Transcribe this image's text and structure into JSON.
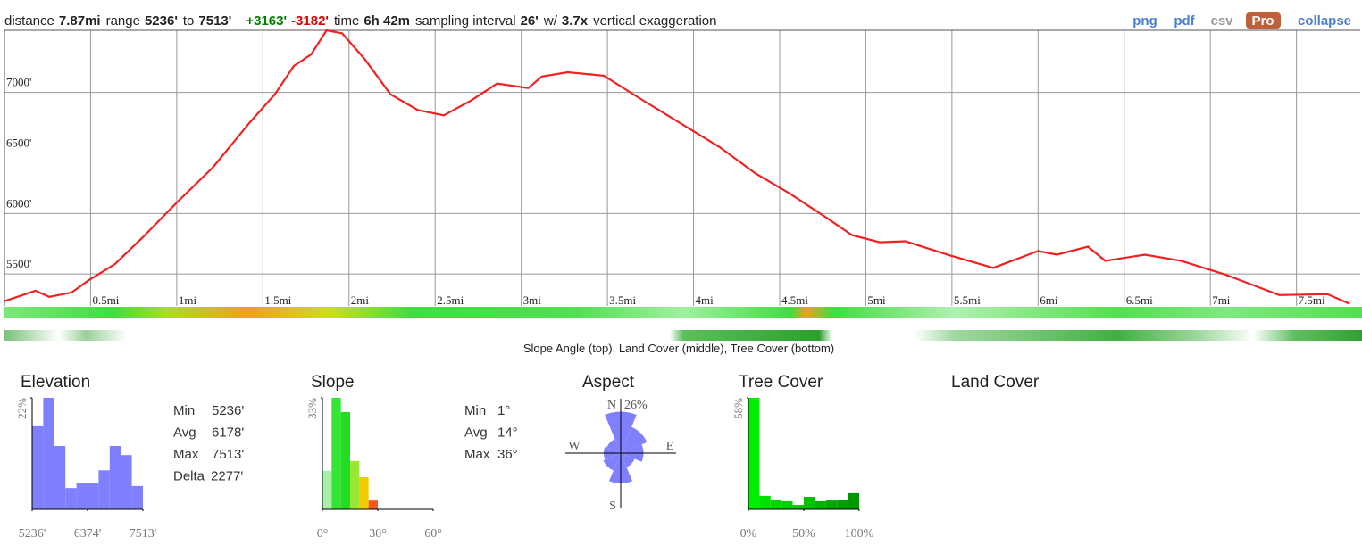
{
  "header": {
    "summary": [
      {
        "label": "distance",
        "value": "7.87mi"
      },
      {
        "label": "range",
        "value": "5236'"
      },
      {
        "label": "to",
        "value": "7513'"
      },
      {
        "value": "+3163'",
        "color": "#008000"
      },
      {
        "value": "-3182'",
        "color": "#e00000"
      },
      {
        "label": "time",
        "value": "6h 42m"
      },
      {
        "label": "sampling interval",
        "value": "26'"
      },
      {
        "label": "w/",
        "value": "3.7x"
      },
      {
        "label": "vertical exaggeration"
      }
    ],
    "links": [
      "png",
      "pdf",
      "csv",
      "Pro",
      "collapse"
    ]
  },
  "chart_data": [
    {
      "type": "line",
      "color": "#ee2222",
      "grid": true,
      "x": [
        0,
        0.18,
        0.26,
        0.39,
        0.49,
        0.64,
        0.8,
        1.0,
        1.21,
        1.42,
        1.57,
        1.68,
        1.78,
        1.87,
        1.96,
        2.09,
        2.24,
        2.4,
        2.55,
        2.71,
        2.86,
        3.04,
        3.12,
        3.27,
        3.48,
        3.69,
        3.94,
        4.15,
        4.36,
        4.56,
        4.77,
        4.92,
        5.08,
        5.23,
        5.49,
        5.74,
        6.0,
        6.11,
        6.29,
        6.39,
        6.62,
        6.83,
        7.09,
        7.4,
        7.68,
        7.81
      ],
      "values": [
        5275,
        5362,
        5311,
        5347,
        5449,
        5580,
        5799,
        6090,
        6381,
        6745,
        6985,
        7218,
        7313,
        7513,
        7488,
        7277,
        6985,
        6854,
        6811,
        6934,
        7073,
        7036,
        7131,
        7167,
        7138,
        6949,
        6731,
        6549,
        6330,
        6163,
        5966,
        5821,
        5762,
        5770,
        5653,
        5551,
        5690,
        5660,
        5726,
        5609,
        5660,
        5609,
        5493,
        5326,
        5333,
        5253
      ],
      "xlim": [
        0,
        7.87
      ],
      "ylim": [
        5236,
        7513
      ],
      "xticks": [
        {
          "value": 0.5,
          "label": "0.5mi"
        },
        {
          "value": 1,
          "label": "1mi"
        },
        {
          "value": 1.5,
          "label": "1.5mi"
        },
        {
          "value": 2,
          "label": "2mi"
        },
        {
          "value": 2.5,
          "label": "2.5mi"
        },
        {
          "value": 3,
          "label": "3mi"
        },
        {
          "value": 3.5,
          "label": "3.5mi"
        },
        {
          "value": 4,
          "label": "4mi"
        },
        {
          "value": 4.5,
          "label": "4.5mi"
        },
        {
          "value": 5,
          "label": "5mi"
        },
        {
          "value": 5.5,
          "label": "5.5mi"
        },
        {
          "value": 6,
          "label": "6mi"
        },
        {
          "value": 6.5,
          "label": "6.5mi"
        },
        {
          "value": 7,
          "label": "7mi"
        },
        {
          "value": 7.5,
          "label": "7.5mi"
        }
      ],
      "yticks": [
        {
          "value": 5500,
          "label": "5500'"
        },
        {
          "value": 6000,
          "label": "6000'"
        },
        {
          "value": 6500,
          "label": "6500'"
        },
        {
          "value": 7000,
          "label": "7000'"
        }
      ],
      "caption": "Slope Angle (top), Land Cover (middle), Tree Cover (bottom)"
    },
    {
      "type": "histogram",
      "title": "Elevation",
      "color": "#8080ff",
      "bins": [
        5236,
        5464,
        5691,
        5919,
        6147,
        6375,
        6602,
        6830,
        7058,
        7285,
        7513
      ],
      "values": [
        16.4,
        22,
        12.5,
        4.2,
        5.1,
        5.1,
        7.7,
        12.5,
        10.7,
        4.6
      ],
      "xlim": [
        5236,
        7513
      ],
      "ylim": [
        0,
        22
      ],
      "xticks": [
        {
          "value": 5236,
          "label": "5236'"
        },
        {
          "value": 6374,
          "label": "6374'"
        },
        {
          "value": 7513,
          "label": "7513'"
        }
      ],
      "yticks": [
        {
          "value": 22,
          "label": "22%"
        }
      ],
      "stats": [
        {
          "label": "Min",
          "value": "5236'"
        },
        {
          "label": "Avg",
          "value": "6178'"
        },
        {
          "label": "Max",
          "value": "7513'"
        },
        {
          "label": "Delta",
          "value": "2277'"
        }
      ]
    },
    {
      "type": "histogram",
      "title": "Slope",
      "colors": [
        "#a8f0a8",
        "#33e633",
        "#22dd22",
        "#99e633",
        "#f0cc00",
        "#ff5522"
      ],
      "bins": [
        0,
        5,
        10,
        15,
        20,
        25,
        30
      ],
      "values": [
        11.4,
        33,
        28.8,
        14.3,
        9.5,
        2.6
      ],
      "xlim": [
        0,
        60
      ],
      "ylim": [
        0,
        33
      ],
      "xticks": [
        {
          "value": 0,
          "label": "0°"
        },
        {
          "value": 30,
          "label": "30°"
        },
        {
          "value": 60,
          "label": "60°"
        }
      ],
      "yticks": [
        {
          "value": 33,
          "label": "33%"
        }
      ],
      "stats": [
        {
          "label": "Min",
          "value": "1°"
        },
        {
          "label": "Avg",
          "value": "14°"
        },
        {
          "label": "Max",
          "value": "36°"
        }
      ]
    },
    {
      "type": "rose",
      "title": "Aspect",
      "color": "#8080ff",
      "categories": [
        "N",
        null,
        "E",
        null,
        "S",
        null,
        "W",
        null
      ],
      "values": [
        22,
        15,
        12,
        8,
        16,
        10,
        9,
        8
      ],
      "rlim": [
        0,
        26
      ],
      "rticks": [
        {
          "value": 26,
          "label": "26%"
        }
      ]
    },
    {
      "type": "histogram",
      "title": "Tree Cover",
      "colors": [
        "#00ee00",
        "#00e000",
        "#00d800",
        "#00d000",
        "#00c800",
        "#00c000",
        "#00b400",
        "#00a800",
        "#00a000",
        "#009800"
      ],
      "bins": [
        0,
        10,
        20,
        30,
        40,
        50,
        60,
        70,
        80,
        90,
        100
      ],
      "values": [
        58,
        7,
        5.1,
        4.2,
        2.3,
        6.5,
        4.2,
        4.6,
        5.1,
        8.4
      ],
      "xlim": [
        0,
        100
      ],
      "ylim": [
        0,
        58
      ],
      "xticks": [
        {
          "value": 0,
          "label": "0%"
        },
        {
          "value": 50,
          "label": "50%"
        },
        {
          "value": 100,
          "label": "100%"
        }
      ],
      "yticks": [
        {
          "value": 58,
          "label": "58%"
        }
      ]
    }
  ],
  "land_cover": {
    "title": "Land Cover"
  }
}
